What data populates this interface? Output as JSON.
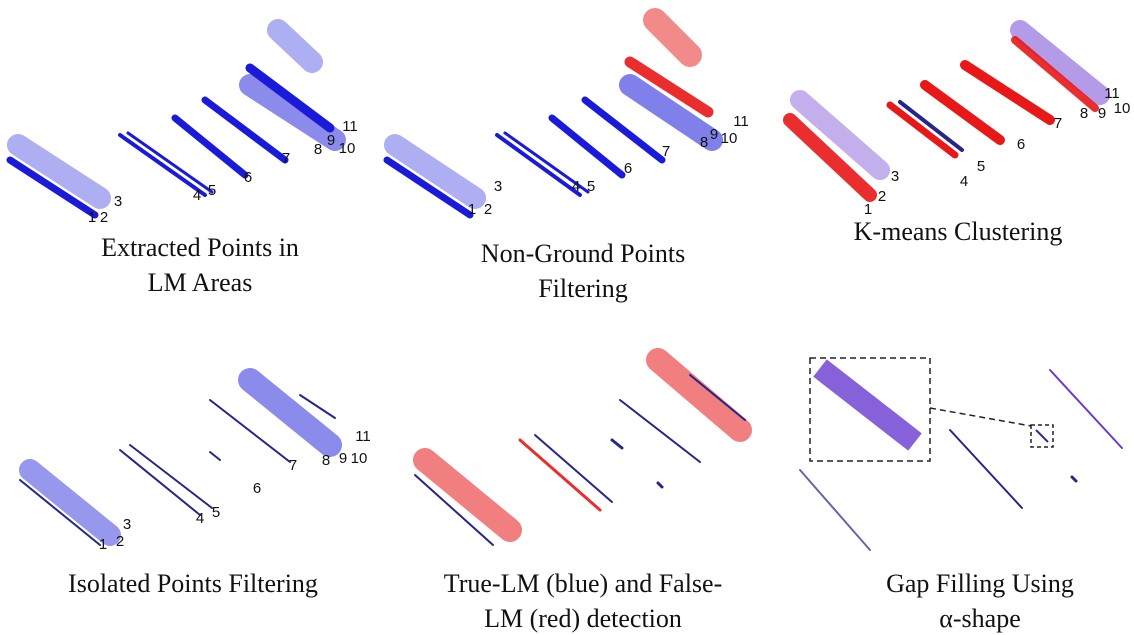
{
  "panels": [
    {
      "caption": [
        "Extracted Points in",
        "LM Areas"
      ],
      "labels": [
        "1",
        "2",
        "3",
        "4",
        "5",
        "6",
        "7",
        "8",
        "9",
        "10",
        "11"
      ]
    },
    {
      "caption": [
        "Non-Ground Points",
        "Filtering"
      ],
      "labels": [
        "1",
        "2",
        "3",
        "4",
        "5",
        "6",
        "7",
        "8",
        "9",
        "10",
        "11"
      ]
    },
    {
      "caption": [
        "K-means Clustering"
      ],
      "labels": [
        "1",
        "2",
        "3",
        "4",
        "5",
        "6",
        "7",
        "8",
        "9",
        "10",
        "11"
      ]
    },
    {
      "caption": [
        "Isolated Points Filtering"
      ],
      "labels": [
        "1",
        "2",
        "3",
        "4",
        "5",
        "6",
        "7",
        "8",
        "9",
        "10",
        "11"
      ]
    },
    {
      "caption": [
        "True-LM (blue) and False-",
        "LM (red) detection"
      ]
    },
    {
      "caption": [
        "Gap Filling Using",
        "α-shape"
      ]
    }
  ]
}
